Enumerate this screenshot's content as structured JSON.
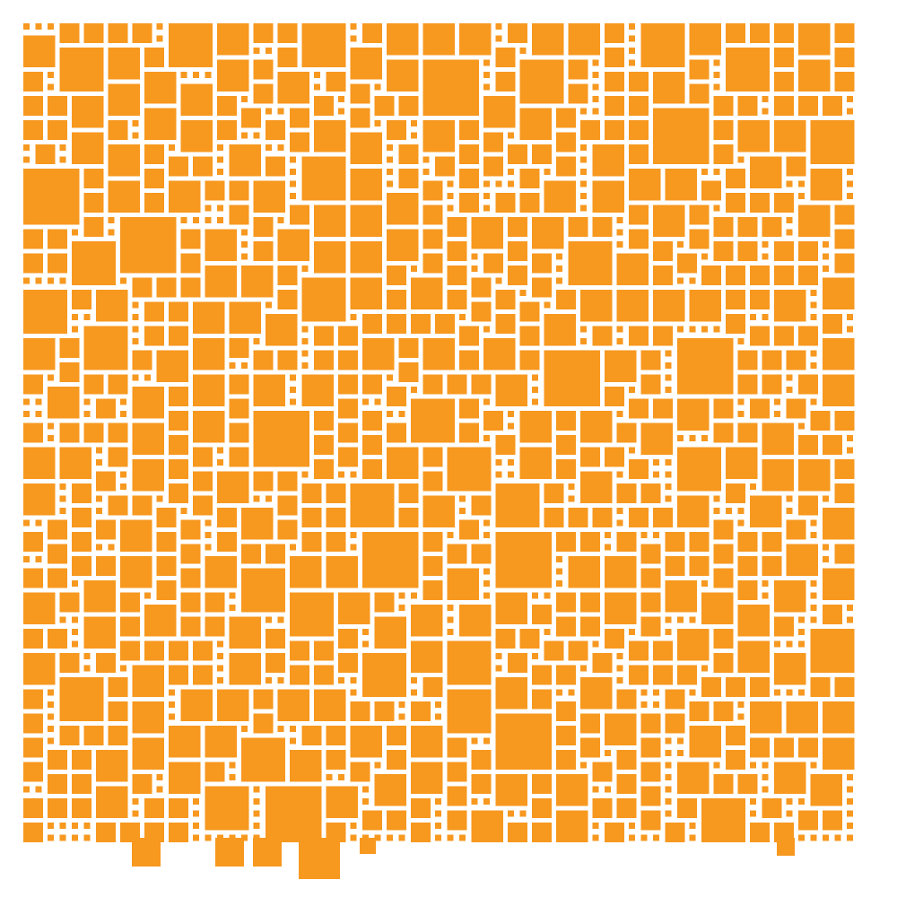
{
  "pattern": {
    "fill_color": "#F7981F",
    "background_color": "#FFFFFF",
    "shape": "square",
    "seed": 20240611
  }
}
